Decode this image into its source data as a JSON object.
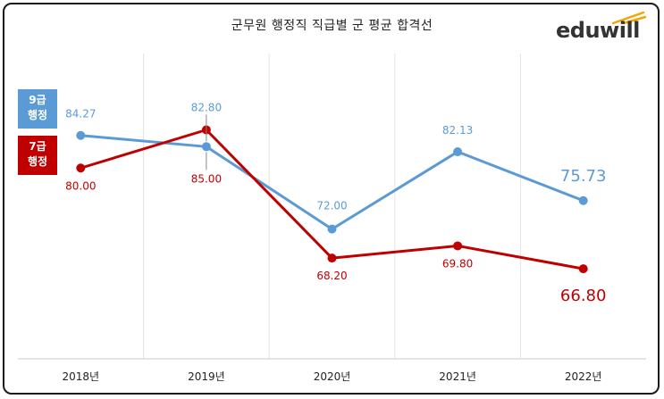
{
  "chart_data": {
    "type": "line",
    "title": "군무원 행정직 직급별 군 평균 합격선",
    "categories": [
      "2018년",
      "2019년",
      "2020년",
      "2021년",
      "2022년"
    ],
    "series": [
      {
        "name": "9급 행정",
        "color": "#5b9bd5",
        "values": [
          84.27,
          82.8,
          72.0,
          82.13,
          75.73
        ],
        "labels": [
          "84.27",
          "82.80",
          "72.00",
          "82.13",
          "75.73"
        ]
      },
      {
        "name": "7급 행정",
        "color": "#c00000",
        "values": [
          80.0,
          85.0,
          68.2,
          69.8,
          66.8
        ],
        "labels": [
          "80.00",
          "85.00",
          "68.20",
          "69.80",
          "66.80"
        ]
      }
    ],
    "xlabel": "",
    "ylabel": "",
    "ylim": [
      55,
      95
    ],
    "grid": "vertical",
    "legend": "left"
  },
  "legend": {
    "s9_line1": "9급",
    "s9_line2": "행정",
    "s7_line1": "7급",
    "s7_line2": "행정"
  },
  "brand": {
    "name": "eduwill",
    "color": "#f5a500"
  }
}
